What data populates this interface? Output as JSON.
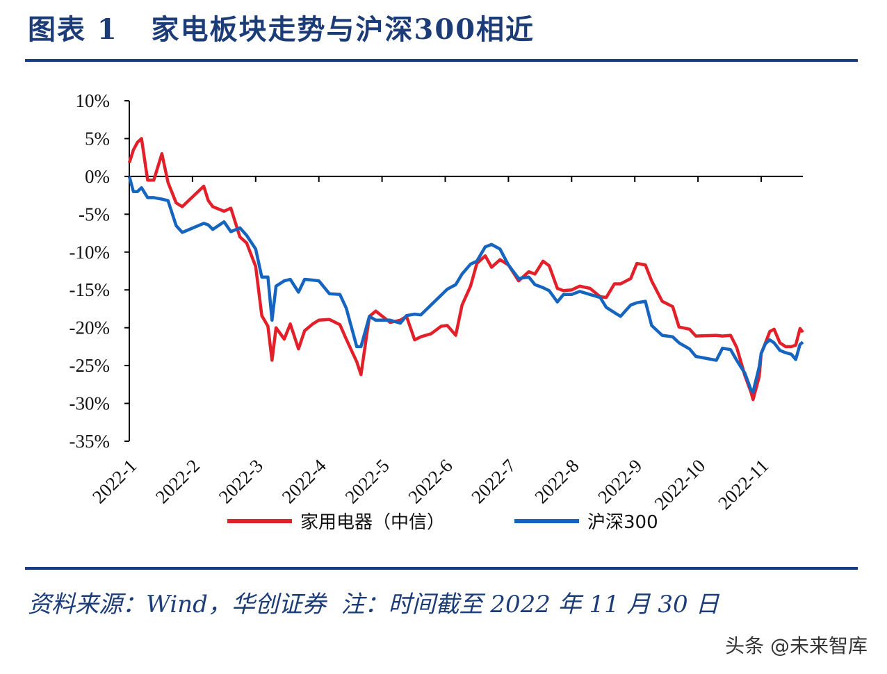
{
  "title": "图表 1   家电板块走势与沪深300相近",
  "footer": "资料来源：Wind，华创证券  注：时间截至 2022 年 11 月 30 日",
  "watermark": "头条 @未来智库",
  "chart_data": {
    "type": "line",
    "title": "",
    "xlabel": "",
    "ylabel": "",
    "ylim": [
      -35,
      10
    ],
    "y_ticks": [
      "10%",
      "5%",
      "0%",
      "-5%",
      "-10%",
      "-15%",
      "-20%",
      "-25%",
      "-30%",
      "-35%"
    ],
    "x_ticks": [
      "2022-1",
      "2022-2",
      "2022-3",
      "2022-4",
      "2022-5",
      "2022-6",
      "2022-7",
      "2022-8",
      "2022-9",
      "2022-10",
      "2022-11"
    ],
    "grid": false,
    "legend": "bottom",
    "x": [
      "2022-01-01",
      "2022-01-03",
      "2022-01-05",
      "2022-01-07",
      "2022-01-10",
      "2022-01-13",
      "2022-01-17",
      "2022-01-20",
      "2022-01-24",
      "2022-01-27",
      "2022-02-06",
      "2022-02-08",
      "2022-02-10",
      "2022-02-15",
      "2022-02-18",
      "2022-02-22",
      "2022-02-25",
      "2022-03-01",
      "2022-03-04",
      "2022-03-07",
      "2022-03-09",
      "2022-03-11",
      "2022-03-15",
      "2022-03-18",
      "2022-03-22",
      "2022-03-25",
      "2022-03-29",
      "2022-04-01",
      "2022-04-06",
      "2022-04-11",
      "2022-04-14",
      "2022-04-19",
      "2022-04-21",
      "2022-04-25",
      "2022-04-28",
      "2022-05-05",
      "2022-05-10",
      "2022-05-13",
      "2022-05-17",
      "2022-05-20",
      "2022-05-25",
      "2022-05-30",
      "2022-06-02",
      "2022-06-06",
      "2022-06-09",
      "2022-06-13",
      "2022-06-16",
      "2022-06-20",
      "2022-06-23",
      "2022-06-27",
      "2022-07-01",
      "2022-07-06",
      "2022-07-11",
      "2022-07-14",
      "2022-07-18",
      "2022-07-21",
      "2022-07-25",
      "2022-07-28",
      "2022-08-01",
      "2022-08-05",
      "2022-08-10",
      "2022-08-15",
      "2022-08-18",
      "2022-08-22",
      "2022-08-25",
      "2022-08-30",
      "2022-09-02",
      "2022-09-06",
      "2022-09-09",
      "2022-09-14",
      "2022-09-19",
      "2022-09-22",
      "2022-09-27",
      "2022-09-30",
      "2022-10-10",
      "2022-10-13",
      "2022-10-17",
      "2022-10-20",
      "2022-10-24",
      "2022-10-27",
      "2022-10-28",
      "2022-10-31",
      "2022-11-01",
      "2022-11-04",
      "2022-11-07",
      "2022-11-10",
      "2022-11-14",
      "2022-11-18",
      "2022-11-22",
      "2022-11-25",
      "2022-11-28",
      "2022-11-30"
    ],
    "series": [
      {
        "name": "家用电器（中信）",
        "color": "#e3202a",
        "values": [
          1.8,
          3.5,
          4.5,
          5.0,
          -0.5,
          -0.5,
          3.0,
          -0.8,
          -3.5,
          -4.0,
          -1.3,
          -3.2,
          -4.0,
          -4.6,
          -4.2,
          -8.0,
          -8.8,
          -11.9,
          -18.4,
          -19.8,
          -24.3,
          -20.0,
          -21.5,
          -19.5,
          -22.8,
          -20.4,
          -19.5,
          -19.0,
          -18.9,
          -19.6,
          -21.5,
          -24.5,
          -26.2,
          -18.5,
          -17.8,
          -19.3,
          -19.0,
          -18.5,
          -21.6,
          -21.2,
          -20.8,
          -19.8,
          -19.7,
          -21.0,
          -17.0,
          -14.5,
          -11.5,
          -10.5,
          -12.0,
          -11.0,
          -11.7,
          -13.8,
          -12.6,
          -12.9,
          -11.2,
          -11.8,
          -14.8,
          -15.1,
          -15.0,
          -14.5,
          -14.8,
          -15.9,
          -16.0,
          -14.2,
          -14.2,
          -13.5,
          -11.5,
          -11.7,
          -13.8,
          -16.5,
          -17.2,
          -19.9,
          -20.2,
          -21.1,
          -21.0,
          -21.1,
          -21.0,
          -22.6,
          -26.3,
          -28.5,
          -29.5,
          -26.5,
          -23.4,
          -22.0,
          -20.5,
          -20.2,
          -22.0,
          -22.5,
          -22.5,
          -22.3,
          -20.1,
          -20.6
        ]
      },
      {
        "name": "沪深300",
        "color": "#1565c0",
        "values": [
          0.0,
          -2.0,
          -2.0,
          -1.5,
          -2.8,
          -2.8,
          -3.0,
          -3.2,
          -6.5,
          -7.4,
          -6.2,
          -6.4,
          -7.0,
          -6.0,
          -7.3,
          -6.8,
          -7.8,
          -9.6,
          -13.3,
          -13.3,
          -19.0,
          -14.5,
          -13.8,
          -13.6,
          -15.3,
          -13.6,
          -13.7,
          -13.8,
          -15.5,
          -15.6,
          -17.4,
          -22.5,
          -22.5,
          -18.5,
          -19.0,
          -19.0,
          -19.4,
          -18.4,
          -18.2,
          -18.3,
          -17.0,
          -15.7,
          -14.9,
          -14.3,
          -12.9,
          -11.6,
          -11.2,
          -9.3,
          -9.0,
          -9.6,
          -11.7,
          -13.5,
          -13.3,
          -14.3,
          -14.7,
          -15.1,
          -16.6,
          -15.6,
          -15.6,
          -15.2,
          -15.6,
          -16.0,
          -17.3,
          -18.0,
          -18.5,
          -17.0,
          -16.7,
          -16.5,
          -19.7,
          -21.0,
          -21.2,
          -22.0,
          -22.8,
          -23.8,
          -24.3,
          -22.7,
          -22.9,
          -24.3,
          -26.0,
          -28.2,
          -28.5,
          -25.2,
          -23.4,
          -22.1,
          -21.6,
          -22.0,
          -23.0,
          -23.3,
          -23.5,
          -24.2,
          -22.2,
          -21.9
        ]
      }
    ]
  }
}
